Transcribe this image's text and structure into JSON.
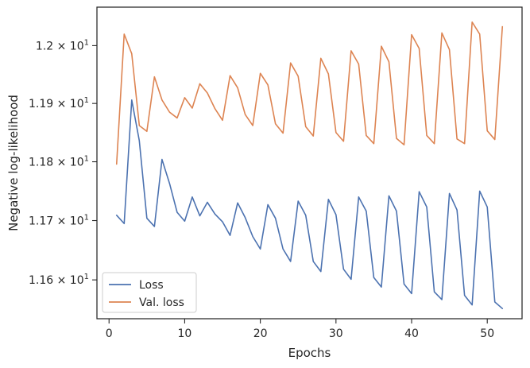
{
  "chart_data": {
    "type": "line",
    "xlabel": "Epochs",
    "ylabel": "Negative log-likelihood",
    "xlim": [
      -1.6,
      54.6
    ],
    "ylim": [
      11.535,
      12.067
    ],
    "y_scale": "log",
    "grid": false,
    "legend": "lower-left",
    "x_ticks": [
      0,
      10,
      20,
      30,
      40,
      50
    ],
    "x_tick_labels": [
      "0",
      "10",
      "20",
      "30",
      "40",
      "50"
    ],
    "y_ticks": [
      11.6,
      11.7,
      11.8,
      11.9,
      12.0
    ],
    "y_tick_labels": [
      {
        "mantissa": "1.16",
        "base": "10",
        "exp": "1"
      },
      {
        "mantissa": "1.17",
        "base": "10",
        "exp": "1"
      },
      {
        "mantissa": "1.18",
        "base": "10",
        "exp": "1"
      },
      {
        "mantissa": "1.19",
        "base": "10",
        "exp": "1"
      },
      {
        "mantissa": "1.2",
        "base": "10",
        "exp": "1"
      }
    ],
    "x": [
      1,
      2,
      3,
      4,
      5,
      6,
      7,
      8,
      9,
      10,
      11,
      12,
      13,
      14,
      15,
      16,
      17,
      18,
      19,
      20,
      21,
      22,
      23,
      24,
      25,
      26,
      27,
      28,
      29,
      30,
      31,
      32,
      33,
      34,
      35,
      36,
      37,
      38,
      39,
      40,
      41,
      42,
      43,
      44,
      45,
      46,
      47,
      48,
      49,
      50,
      51,
      52
    ],
    "series": [
      {
        "name": "Loss",
        "color": "#4c72b0",
        "values": [
          11.709,
          11.695,
          11.906,
          11.836,
          11.704,
          11.69,
          11.804,
          11.763,
          11.714,
          11.699,
          11.74,
          11.708,
          11.731,
          11.711,
          11.698,
          11.675,
          11.73,
          11.705,
          11.673,
          11.652,
          11.727,
          11.704,
          11.652,
          11.631,
          11.733,
          11.709,
          11.631,
          11.614,
          11.736,
          11.71,
          11.618,
          11.601,
          11.74,
          11.716,
          11.604,
          11.588,
          11.742,
          11.716,
          11.593,
          11.577,
          11.749,
          11.723,
          11.58,
          11.567,
          11.746,
          11.718,
          11.574,
          11.558,
          11.75,
          11.723,
          11.563,
          11.552
        ]
      },
      {
        "name": "Val. loss",
        "color": "#dd8452",
        "values": [
          11.796,
          12.02,
          11.986,
          11.862,
          11.852,
          11.946,
          11.906,
          11.885,
          11.875,
          11.91,
          11.892,
          11.934,
          11.918,
          11.891,
          11.871,
          11.948,
          11.927,
          11.881,
          11.862,
          11.952,
          11.932,
          11.865,
          11.849,
          11.97,
          11.947,
          11.86,
          11.844,
          11.978,
          11.951,
          11.85,
          11.835,
          11.991,
          11.968,
          11.845,
          11.831,
          11.999,
          11.972,
          11.84,
          11.829,
          12.019,
          11.995,
          11.845,
          11.831,
          12.022,
          11.993,
          11.839,
          11.831,
          12.041,
          12.02,
          11.853,
          11.838,
          12.033
        ]
      }
    ]
  }
}
